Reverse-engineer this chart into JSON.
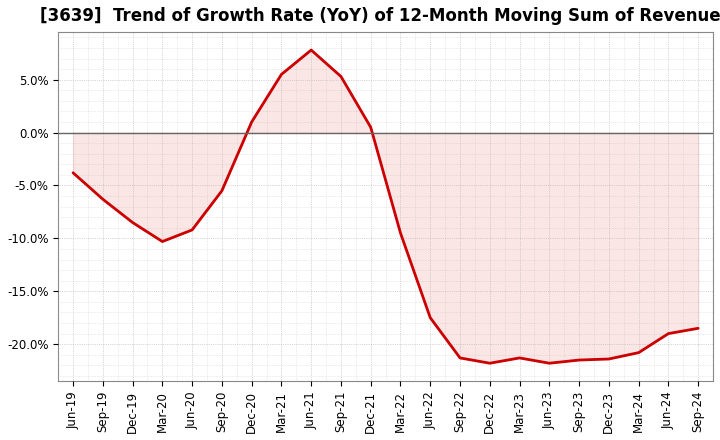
{
  "title": "[3639]  Trend of Growth Rate (YoY) of 12-Month Moving Sum of Revenues",
  "line_color": "#cc0000",
  "fill_color": "#f5b8b8",
  "line_width": 2.0,
  "background_color": "#ffffff",
  "plot_bg_color": "#ffffff",
  "grid_color": "#aaaaaa",
  "zero_line_color": "#666666",
  "dates": [
    "Jun-19",
    "Sep-19",
    "Dec-19",
    "Mar-20",
    "Jun-20",
    "Sep-20",
    "Dec-20",
    "Mar-21",
    "Jun-21",
    "Sep-21",
    "Dec-21",
    "Mar-22",
    "Jun-22",
    "Sep-22",
    "Dec-22",
    "Mar-23",
    "Jun-23",
    "Sep-23",
    "Dec-23",
    "Mar-24",
    "Jun-24",
    "Sep-24"
  ],
  "values": [
    -0.038,
    -0.063,
    -0.085,
    -0.103,
    -0.092,
    -0.055,
    0.01,
    0.055,
    0.078,
    0.053,
    0.005,
    -0.095,
    -0.175,
    -0.213,
    -0.218,
    -0.213,
    -0.218,
    -0.215,
    -0.214,
    -0.208,
    -0.19,
    -0.185
  ],
  "yticks": [
    -0.2,
    -0.15,
    -0.1,
    -0.05,
    0.0,
    0.05
  ],
  "ylim": [
    -0.235,
    0.095
  ],
  "title_fontsize": 12,
  "tick_fontsize": 8.5,
  "spine_color": "#888888"
}
